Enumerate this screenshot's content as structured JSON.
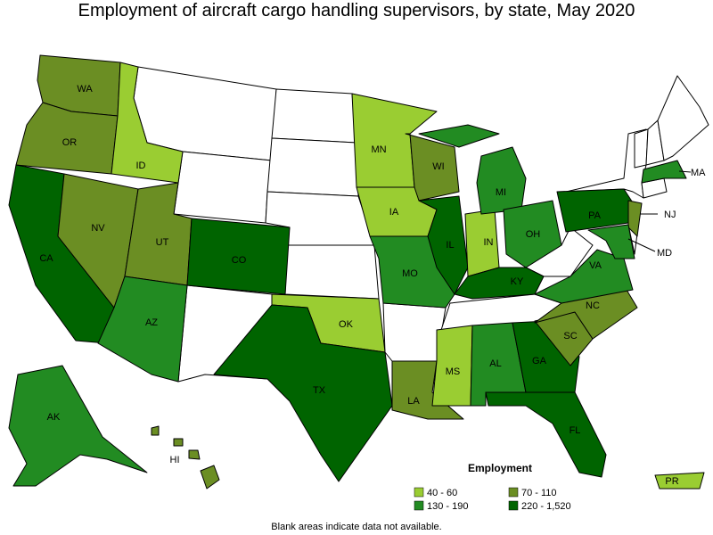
{
  "title": "Employment of aircraft cargo handling supervisors, by state, May 2020",
  "legend": {
    "title": "Employment",
    "items": [
      {
        "label": "40 - 60",
        "color": "#9acd32",
        "states": [
          "ID",
          "MN",
          "IA",
          "IN",
          "OK",
          "MS",
          "PR"
        ]
      },
      {
        "label": "70 - 110",
        "color": "#6b8e23",
        "states": [
          "WA",
          "OR",
          "NV",
          "UT",
          "WI",
          "NJ",
          "LA",
          "NC",
          "SC",
          "HI"
        ]
      },
      {
        "label": "130 - 190",
        "color": "#228b22",
        "states": [
          "AZ",
          "AK",
          "MO",
          "MI",
          "OH",
          "VA",
          "AL",
          "MA",
          "MD"
        ]
      },
      {
        "label": "220 - 1,520",
        "color": "#006400",
        "states": [
          "CA",
          "CO",
          "TX",
          "IL",
          "KY",
          "PA",
          "GA",
          "FL"
        ]
      }
    ]
  },
  "footnote": "Blank areas indicate data not available."
}
